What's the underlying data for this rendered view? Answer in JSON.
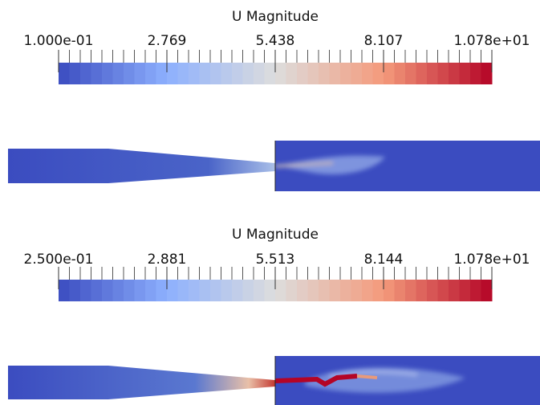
{
  "panels": [
    {
      "title": "U Magnitude",
      "ticks": [
        "1.000e-01",
        "2.769",
        "5.438",
        "8.107",
        "1.078e+01"
      ]
    },
    {
      "title": "U Magnitude",
      "ticks": [
        "2.500e-01",
        "2.881",
        "5.513",
        "8.144",
        "1.078e+01"
      ]
    }
  ]
}
